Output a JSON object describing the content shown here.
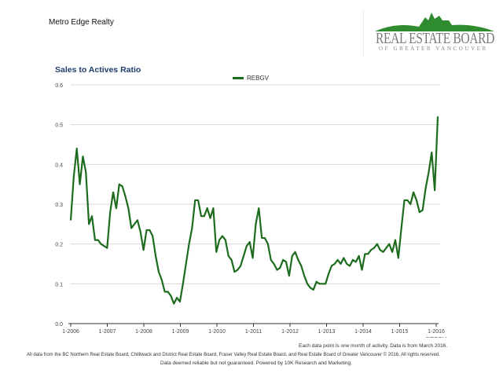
{
  "header": {
    "company": "Metro Edge Realty",
    "logo_text": "REAL ESTATE BOARD",
    "logo_subtext": "OF GREATER VANCOUVER"
  },
  "chart_data": {
    "type": "line",
    "title": "Sales to Actives Ratio",
    "xlabel": "REBGV",
    "ylabel": "",
    "ylim": [
      0,
      0.6
    ],
    "yticks": [
      "0.0",
      "0.1",
      "0.2",
      "0.3",
      "0.4",
      "0.5",
      "0.6"
    ],
    "xticks": [
      "1-2006",
      "1-2007",
      "1-2008",
      "1-2009",
      "1-2010",
      "1-2011",
      "1-2012",
      "1-2013",
      "1-2014",
      "1-2015",
      "1-2016"
    ],
    "grid": true,
    "legend": "top-center",
    "colors": {
      "line": "#1d6b1d",
      "grid": "#d8d8d8"
    },
    "series": [
      {
        "name": "REBGV",
        "start": "1-2006",
        "frequency": "monthly",
        "values": [
          0.26,
          0.37,
          0.44,
          0.35,
          0.42,
          0.38,
          0.25,
          0.27,
          0.21,
          0.21,
          0.2,
          0.195,
          0.19,
          0.28,
          0.33,
          0.29,
          0.35,
          0.345,
          0.32,
          0.29,
          0.24,
          0.25,
          0.26,
          0.23,
          0.185,
          0.235,
          0.235,
          0.22,
          0.17,
          0.13,
          0.11,
          0.08,
          0.08,
          0.07,
          0.05,
          0.065,
          0.055,
          0.1,
          0.15,
          0.2,
          0.24,
          0.31,
          0.31,
          0.27,
          0.27,
          0.29,
          0.265,
          0.29,
          0.18,
          0.21,
          0.22,
          0.21,
          0.17,
          0.16,
          0.13,
          0.135,
          0.145,
          0.17,
          0.195,
          0.205,
          0.165,
          0.25,
          0.29,
          0.215,
          0.215,
          0.2,
          0.16,
          0.15,
          0.135,
          0.14,
          0.16,
          0.155,
          0.12,
          0.17,
          0.18,
          0.16,
          0.145,
          0.12,
          0.1,
          0.09,
          0.085,
          0.105,
          0.1,
          0.1,
          0.1,
          0.125,
          0.145,
          0.15,
          0.16,
          0.15,
          0.165,
          0.15,
          0.145,
          0.16,
          0.155,
          0.17,
          0.135,
          0.175,
          0.175,
          0.185,
          0.19,
          0.2,
          0.185,
          0.18,
          0.19,
          0.2,
          0.18,
          0.21,
          0.165,
          0.24,
          0.31,
          0.31,
          0.3,
          0.33,
          0.31,
          0.28,
          0.285,
          0.34,
          0.38,
          0.43,
          0.335,
          0.52
        ]
      }
    ]
  },
  "footer": {
    "note": "Each data point is one month of activity. Data is from March 2016.",
    "sources": "All data from the BC Northern Real Estate Board, Chilliwack and District Real Estate Board, Fraser Valley Real Estate Board, and Real Estate Board of Greater Vancouver © 2016. All rights reserved.",
    "disclaimer": "Data deemed reliable but not guaranteed. Powered by 10K Research and Marketing."
  }
}
